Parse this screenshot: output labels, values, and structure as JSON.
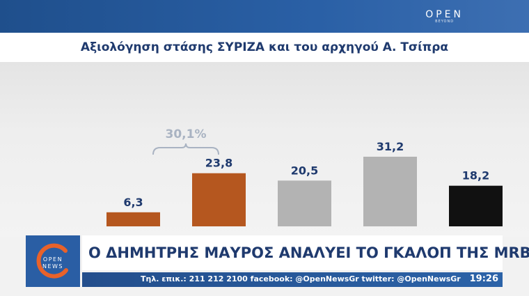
{
  "broadcast": {
    "brand_main": "OPEN",
    "brand_sub": "BEYOND",
    "logo_line1": "OPEN",
    "logo_line2": "NEWS",
    "headline": "Ο ΔΗΜΗΤΡΗΣ ΜΑΥΡΟΣ ΑΝΑΛΥΕΙ ΤΟ ΓΚΑΛΟΠ ΤΗΣ MRB",
    "ticker": "Τηλ. επικ.: 211 212 2100 facebook: @OpenNewsGr twitter: @OpenNewsGr",
    "time": "19:26"
  },
  "colors": {
    "orange": "#b5571f",
    "gray": "#b3b3b3",
    "black": "#111111",
    "navy": "#1f3a6e",
    "brand_blue": "#2a5ea4"
  },
  "chart_data": {
    "type": "bar",
    "title": "Αξιολόγηση στάσης ΣΥΡΙΖΑ και του αρχηγού Α. Τσίπρα",
    "xlabel": "",
    "ylabel": "",
    "ylim": [
      0,
      40
    ],
    "grid": false,
    "values": [
      6.3,
      23.8,
      20.5,
      31.2,
      18.2
    ],
    "labels": [
      "6,3",
      "23,8",
      "20,5",
      "31,2",
      "18,2"
    ],
    "bar_colors": [
      "#b5571f",
      "#b5571f",
      "#b3b3b3",
      "#b3b3b3",
      "#111111"
    ],
    "annotation": {
      "text": "30,1%",
      "covers": [
        0,
        1
      ]
    }
  }
}
